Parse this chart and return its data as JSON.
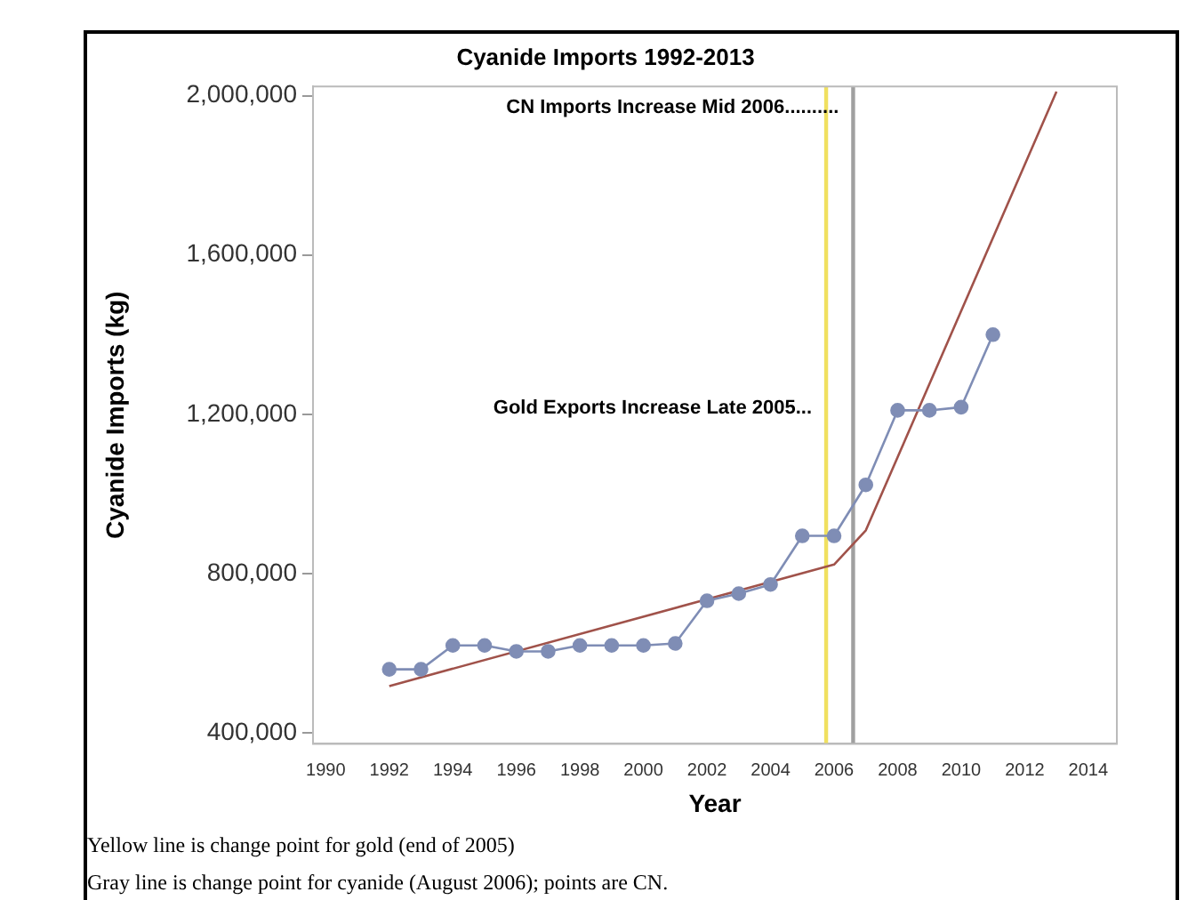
{
  "chart_data": {
    "type": "line",
    "title": "Cyanide Imports 1992-2013",
    "xlabel": "Year",
    "ylabel": "Cyanide Imports (kg)",
    "xlim": [
      1989.6,
      2014.9
    ],
    "xticks": [
      1990,
      1992,
      1994,
      1996,
      1998,
      2000,
      2002,
      2004,
      2006,
      2008,
      2010,
      2012,
      2014
    ],
    "ylim": [
      373000,
      2023000
    ],
    "yticks": [
      {
        "value": 400000,
        "label": "400,000"
      },
      {
        "value": 800000,
        "label": "800,000"
      },
      {
        "value": 1200000,
        "label": "1,200,000"
      },
      {
        "value": 1600000,
        "label": "1,600,000"
      },
      {
        "value": 2000000,
        "label": "2,000,000"
      }
    ],
    "grid": false,
    "legend": false,
    "marker": "circle",
    "line_style": "solid",
    "series": [
      {
        "color": "#7f8db5",
        "x": [
          1992,
          1993,
          1994,
          1995,
          1996,
          1997,
          1998,
          1999,
          2000,
          2001,
          2002,
          2003,
          2004,
          2005,
          2006,
          2007,
          2008,
          2009,
          2010,
          2011
        ],
        "values": [
          560000,
          560000,
          620000,
          620000,
          605000,
          605000,
          620000,
          620000,
          620000,
          625000,
          732000,
          750000,
          773000,
          895000,
          895000,
          1023000,
          1210000,
          1210000,
          1218000,
          1400000
        ]
      },
      {
        "type": "line",
        "color": "#a0524a",
        "marker": "none",
        "x": [
          1992,
          2006,
          2007,
          2013
        ],
        "values": [
          518000,
          823000,
          909000,
          2010000
        ]
      }
    ],
    "ref_lines": [
      {
        "axis": "x",
        "value": 2005.75,
        "label": "Gold Exports Increase Late 2005...",
        "color": "#f0e060"
      },
      {
        "axis": "x",
        "value": 2006.6,
        "label": "CN Imports Increase Mid 2006..........",
        "color": "#a0a0a0"
      }
    ],
    "annotations": [
      "Yellow line is change point for gold (end of 2005)",
      "Gray line is change point for cyanide (August 2006); points are CN."
    ]
  }
}
